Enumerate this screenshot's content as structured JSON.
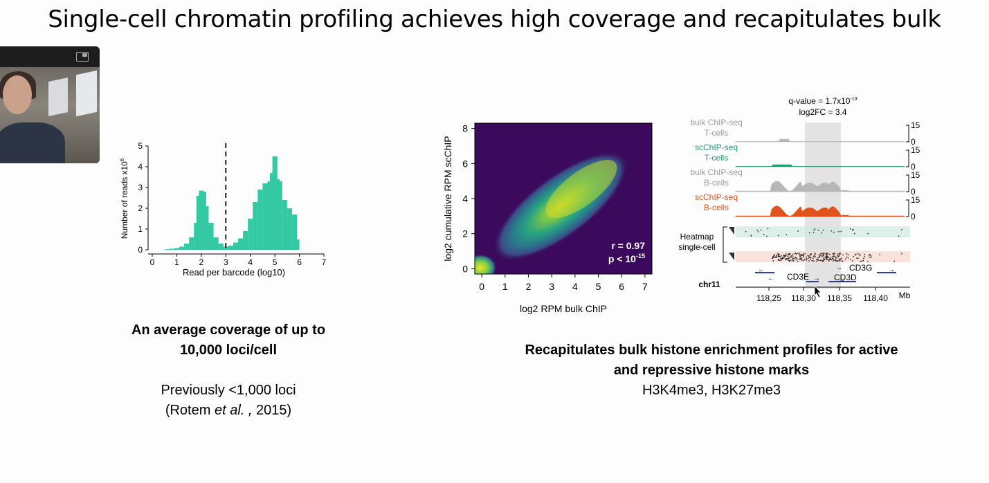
{
  "slide": {
    "title": "Single-cell chromatin profiling achieves high coverage and recapitulates bulk"
  },
  "left_caption": {
    "line1": "An average coverage of up to",
    "line2": "10,000 loci/cell",
    "line3": "Previously <1,000 loci",
    "line4_pre": "(Rotem ",
    "line4_em": "et al. ,",
    "line4_post": " 2015)"
  },
  "right_caption": {
    "line1": "Recapitulates bulk histone enrichment profiles for active",
    "line2": "and repressive histone marks",
    "line3": "H3K4me3, H3K27me3"
  },
  "histogram": {
    "ylabel": "Number of reads x10",
    "ylabel_sup": "6",
    "xlabel": "Read per barcode (log10)",
    "xticks": [
      "0",
      "1",
      "2",
      "3",
      "4",
      "5",
      "6",
      "7"
    ],
    "yticks": [
      "0",
      "1",
      "2",
      "3",
      "4",
      "5"
    ],
    "threshold": 3
  },
  "density": {
    "ylabel": "log2 cumulative RPM scChIP",
    "xlabel": "log2 RPM bulk ChIP",
    "xticks": [
      "0",
      "1",
      "2",
      "3",
      "4",
      "5",
      "6",
      "7"
    ],
    "yticks": [
      "0",
      "2",
      "4",
      "6",
      "8"
    ],
    "r_text": "r = 0.97",
    "p_text": "p < 10",
    "p_sup": "-15"
  },
  "tracks": {
    "qvalue": "q-value = 1.7x10",
    "qvalue_sup": "-13",
    "log2fc": "log2FC = 3.4",
    "track_labels": [
      {
        "line1": "bulk ChIP-seq",
        "line2": "T-cells",
        "color": "#9a9a9a"
      },
      {
        "line1": "scChIP-seq",
        "line2": "T-cells",
        "color": "#1e9e6e"
      },
      {
        "line1": "bulk ChIP-seq",
        "line2": "B-cells",
        "color": "#9a9a9a"
      },
      {
        "line1": "scChIP-seq",
        "line2": "B-cells",
        "color": "#e0531c"
      }
    ],
    "scale_max": "15",
    "scale_min": "0",
    "heatmap_label1": "Heatmap",
    "heatmap_label2": "single-cell",
    "genes": [
      "CD3G",
      "CD3E",
      "CD3D"
    ],
    "chrom": "chr11",
    "coords": [
      "118,25",
      "118,30",
      "118,35",
      "118,40"
    ],
    "unit": "Mb"
  },
  "chart_data": [
    {
      "type": "bar",
      "title": "",
      "xlabel": "Read per barcode (log10)",
      "ylabel": "Number of reads x10^6",
      "xlim": [
        0,
        7
      ],
      "ylim": [
        0,
        5
      ],
      "x": [
        0.6,
        0.8,
        1.0,
        1.2,
        1.4,
        1.6,
        1.8,
        1.9,
        2.0,
        2.1,
        2.2,
        2.4,
        2.6,
        2.8,
        3.0,
        3.2,
        3.4,
        3.6,
        3.8,
        4.0,
        4.2,
        4.4,
        4.6,
        4.8,
        4.9,
        5.0,
        5.1,
        5.2,
        5.4,
        5.5,
        5.6,
        5.8,
        5.9
      ],
      "values": [
        0.03,
        0.05,
        0.08,
        0.15,
        0.3,
        0.6,
        1.3,
        2.6,
        2.85,
        2.8,
        2.1,
        1.3,
        0.6,
        0.3,
        0.15,
        0.2,
        0.35,
        0.55,
        0.9,
        1.5,
        2.3,
        2.9,
        3.2,
        3.3,
        3.7,
        4.5,
        3.4,
        3.3,
        2.4,
        1.4,
        2.0,
        1.7,
        0.5
      ],
      "threshold": 3
    },
    {
      "type": "heatmap",
      "title": "",
      "xlabel": "log2 RPM bulk ChIP",
      "ylabel": "log2 cumulative RPM scChIP",
      "xlim": [
        -0.3,
        7.3
      ],
      "ylim": [
        -0.3,
        8.3
      ],
      "r": 0.97,
      "p": "< 10^-15"
    }
  ],
  "colors": {
    "hist": "#33c9a3",
    "density_bg": "#3b0a5c",
    "t_track": "#1e9e6e",
    "b_track": "#e0531c",
    "bulk_track": "#9a9a9a",
    "gene": "#2b3f9e"
  }
}
